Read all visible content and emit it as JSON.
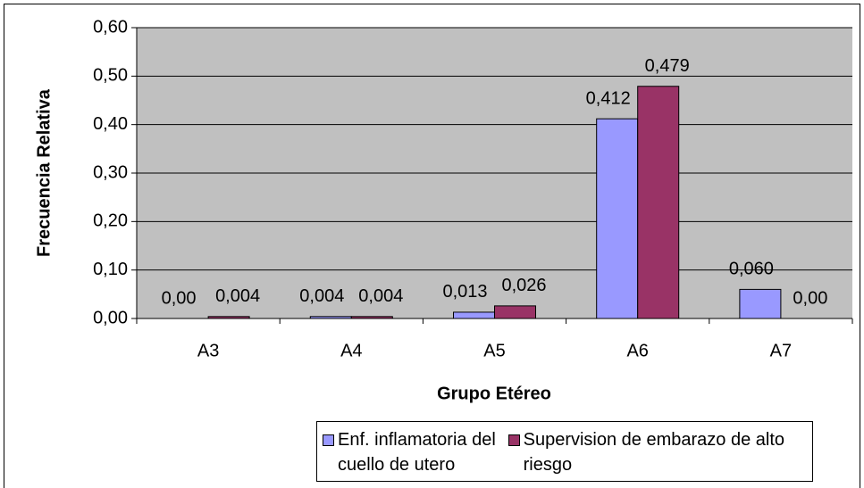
{
  "chart_data": {
    "type": "bar",
    "xlabel": "Grupo Etéreo",
    "ylabel": "Frecuencia Relativa",
    "categories": [
      "A3",
      "A4",
      "A5",
      "A6",
      "A7"
    ],
    "series": [
      {
        "name": "Enf. inflamatoria del cuello de utero",
        "color": "#9999ff",
        "values": [
          0,
          0.004,
          0.013,
          0.412,
          0.06
        ],
        "value_labels": [
          "0,00",
          "0,004",
          "0,013",
          "0,412",
          "0,060"
        ]
      },
      {
        "name": "Supervision de embarazo de alto riesgo",
        "color": "#993366",
        "values": [
          0.004,
          0.004,
          0.026,
          0.479,
          0
        ],
        "value_labels": [
          "0,004",
          "0,004",
          "0,026",
          "0,479",
          "0,00"
        ]
      }
    ],
    "ylim": [
      0,
      0.6
    ],
    "yticks": [
      {
        "value": 0,
        "label": "0,00"
      },
      {
        "value": 0.1,
        "label": "0,10"
      },
      {
        "value": 0.2,
        "label": "0,20"
      },
      {
        "value": 0.3,
        "label": "0,30"
      },
      {
        "value": 0.4,
        "label": "0,40"
      },
      {
        "value": 0.5,
        "label": "0,50"
      },
      {
        "value": 0.6,
        "label": "0,60"
      }
    ],
    "grid": true,
    "legend": "bottom"
  }
}
